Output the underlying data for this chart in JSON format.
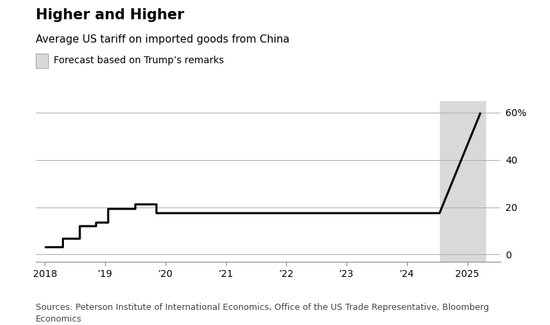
{
  "title": "Higher and Higher",
  "subtitle": "Average US tariff on imported goods from China",
  "legend_label": "Forecast based on Trump’s remarks",
  "sources": "Sources: Peterson Institute of International Economics, Office of the US Trade Representative, Bloomberg\nEconomics",
  "background_color": "#ffffff",
  "line_color": "#000000",
  "forecast_shade_color": "#d9d9d9",
  "forecast_start": 2024.55,
  "forecast_end": 2025.3,
  "ylim": [
    -3,
    65
  ],
  "yticks": [
    0,
    20,
    40,
    60
  ],
  "ytick_labels": [
    "0",
    "20",
    "40",
    "60%"
  ],
  "xlim": [
    2017.85,
    2025.55
  ],
  "xticks": [
    2018,
    2019,
    2020,
    2021,
    2022,
    2023,
    2024,
    2025
  ],
  "xtick_labels": [
    "2018",
    "’19",
    "’20",
    "’21",
    "’22",
    "’23",
    "’24",
    "2025"
  ],
  "line_data_x": [
    2018.0,
    2018.3,
    2018.3,
    2018.58,
    2018.58,
    2018.85,
    2018.85,
    2019.05,
    2019.05,
    2019.5,
    2019.5,
    2019.85,
    2019.85,
    2024.54,
    2024.54,
    2025.22
  ],
  "line_data_y": [
    3.1,
    3.1,
    6.7,
    6.7,
    12.0,
    12.0,
    13.5,
    13.5,
    19.3,
    19.3,
    21.2,
    21.2,
    17.5,
    17.5,
    17.5,
    60.0
  ],
  "line_width": 2.2,
  "title_fontsize": 15,
  "subtitle_fontsize": 11,
  "sources_fontsize": 9,
  "tick_fontsize": 10,
  "legend_fontsize": 10
}
